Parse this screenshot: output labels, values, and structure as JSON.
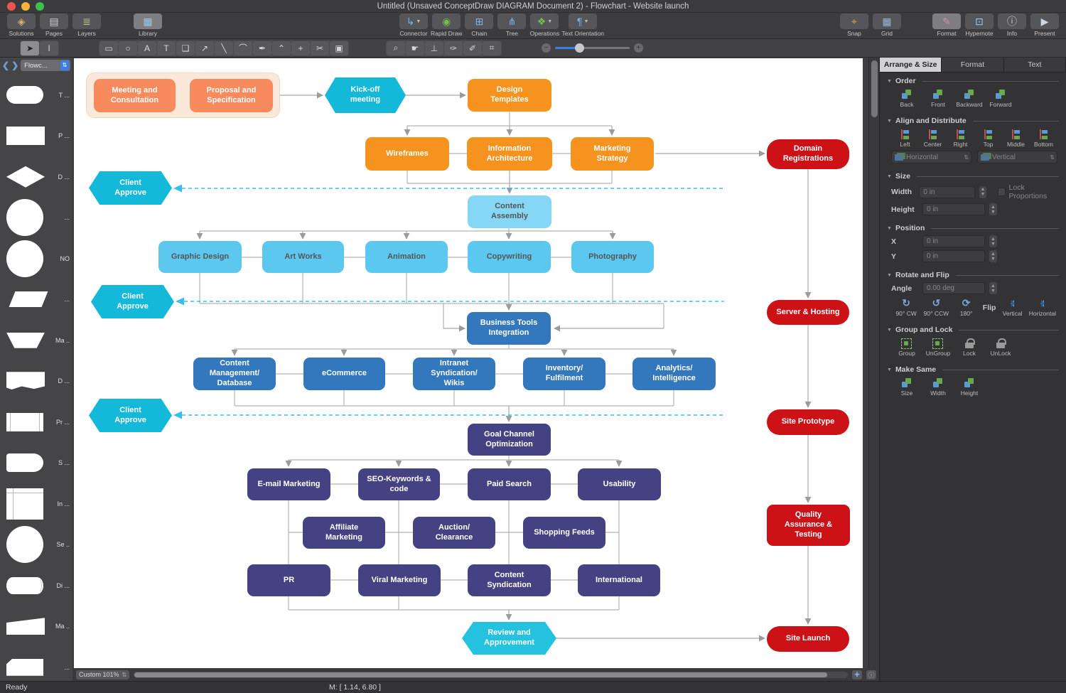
{
  "titlebar": {
    "title": "Untitled (Unsaved ConceptDraw DIAGRAM Document 2) - Flowchart - Website launch"
  },
  "toolbar": {
    "left": [
      {
        "label": "Solutions",
        "icon": "solutions-icon"
      },
      {
        "label": "Pages",
        "icon": "pages-icon"
      },
      {
        "label": "Layers",
        "icon": "layers-icon"
      }
    ],
    "library": {
      "label": "Library",
      "icon": "library-icon"
    },
    "center": [
      {
        "label": "Connector",
        "icon": "connector-icon",
        "caret": true
      },
      {
        "label": "Rapid Draw",
        "icon": "rapid-draw-icon",
        "caret": false
      },
      {
        "label": "Chain",
        "icon": "chain-icon",
        "caret": false
      },
      {
        "label": "Tree",
        "icon": "tree-icon",
        "caret": false
      },
      {
        "label": "Operations",
        "icon": "operations-icon",
        "caret": true
      },
      {
        "label": "Text Orientation",
        "icon": "text-orientation-icon",
        "caret": true
      }
    ],
    "snap_grid": [
      {
        "label": "Snap",
        "icon": "snap-icon"
      },
      {
        "label": "Grid",
        "icon": "grid-icon"
      }
    ],
    "right": [
      {
        "label": "Format",
        "icon": "format-icon",
        "active": true
      },
      {
        "label": "Hypernote",
        "icon": "hypernote-icon",
        "active": false
      },
      {
        "label": "Info",
        "icon": "info-icon",
        "active": false
      },
      {
        "label": "Present",
        "icon": "present-icon",
        "active": false
      }
    ]
  },
  "toolbar2": {
    "select_tools": [
      "select-tool",
      "text-select-tool"
    ],
    "draw_tools": [
      "rectangle-tool",
      "ellipse-tool",
      "text-tool",
      "text-block-tool",
      "callout-tool",
      "arrow-tool",
      "line-tool",
      "curve-tool",
      "pen-tool",
      "vertex-tool",
      "add-point-tool",
      "cut-tool",
      "shape-operations-tool"
    ],
    "view_tools": [
      "zoom-tool",
      "pan-tool",
      "stamp-tool",
      "eyedropper-tool",
      "brush-tool",
      "crop-tool"
    ]
  },
  "sidebar": {
    "dropdown": "Flowc...",
    "shapes": [
      {
        "kind": "terminator",
        "label": "T ..."
      },
      {
        "kind": "process",
        "label": "P ..."
      },
      {
        "kind": "decision",
        "label": "D ..."
      },
      {
        "kind": "circle",
        "label": "..."
      },
      {
        "kind": "circle",
        "label": "NO"
      },
      {
        "kind": "parallelogram",
        "label": "..."
      },
      {
        "kind": "trapezoid",
        "label": "Ma .."
      },
      {
        "kind": "document",
        "label": "D ..."
      },
      {
        "kind": "predefined",
        "label": "Pr ..."
      },
      {
        "kind": "stored",
        "label": "S ..."
      },
      {
        "kind": "internal",
        "label": "In ..."
      },
      {
        "kind": "circle",
        "label": "Se .."
      },
      {
        "kind": "cylinder",
        "label": "Di ..."
      },
      {
        "kind": "manualop",
        "label": "Ma .."
      },
      {
        "kind": "card",
        "label": "..."
      }
    ]
  },
  "flowchart": {
    "nodes": [
      {
        "id": "group1",
        "kind": "group",
        "label": ""
      },
      {
        "id": "meeting",
        "kind": "salmon",
        "label": "Meeting and\nConsultation"
      },
      {
        "id": "proposal",
        "kind": "salmon",
        "label": "Proposal and\nSpecification"
      },
      {
        "id": "kickoff",
        "kind": "hex",
        "label": "Kick-off\nmeeting"
      },
      {
        "id": "design",
        "kind": "orange",
        "label": "Design\nTemplates"
      },
      {
        "id": "wireframes",
        "kind": "orange",
        "label": "Wireframes"
      },
      {
        "id": "infoarch",
        "kind": "orange",
        "label": "Information\nArchitecture"
      },
      {
        "id": "marketing",
        "kind": "orange",
        "label": "Marketing\nStrategy"
      },
      {
        "id": "domain",
        "kind": "redstadium",
        "label": "Domain\nRegistrations"
      },
      {
        "id": "approve1",
        "kind": "hex",
        "label": "Client\nApprove"
      },
      {
        "id": "contentasm",
        "kind": "lighterblue",
        "label": "Content\nAssembly"
      },
      {
        "id": "graphic",
        "kind": "lightblue",
        "label": "Graphic Design"
      },
      {
        "id": "artworks",
        "kind": "lightblue",
        "label": "Art Works"
      },
      {
        "id": "animation",
        "kind": "lightblue",
        "label": "Animation"
      },
      {
        "id": "copywriting",
        "kind": "lightblue",
        "label": "Copywriting"
      },
      {
        "id": "photography",
        "kind": "lightblue",
        "label": "Photography"
      },
      {
        "id": "approve2",
        "kind": "hex",
        "label": "Client\nApprove"
      },
      {
        "id": "server",
        "kind": "redstadium",
        "label": "Server & Hosting"
      },
      {
        "id": "bti",
        "kind": "blue",
        "label": "Business Tools\nIntegration"
      },
      {
        "id": "cms",
        "kind": "blue",
        "label": "Content\nManagement/\nDatabase"
      },
      {
        "id": "ecommerce",
        "kind": "blue",
        "label": "eCommerce"
      },
      {
        "id": "intranet",
        "kind": "blue",
        "label": "Intranet\nSyndication/\nWikis"
      },
      {
        "id": "inventory",
        "kind": "blue",
        "label": "Inventory/\nFulfilment"
      },
      {
        "id": "analytics",
        "kind": "blue",
        "label": "Analytics/\nIntelligence"
      },
      {
        "id": "approve3",
        "kind": "hex",
        "label": "Client\nApprove"
      },
      {
        "id": "prototype",
        "kind": "redstadium",
        "label": "Site Prototype"
      },
      {
        "id": "gco",
        "kind": "purple",
        "label": "Goal Channel\nOptimization"
      },
      {
        "id": "email",
        "kind": "purple",
        "label": "E-mail Marketing"
      },
      {
        "id": "seo",
        "kind": "purple",
        "label": "SEO-Keywords &\ncode"
      },
      {
        "id": "paidsearch",
        "kind": "purple",
        "label": "Paid Search"
      },
      {
        "id": "usability",
        "kind": "purple",
        "label": "Usability"
      },
      {
        "id": "affiliate",
        "kind": "purple",
        "label": "Affiliate\nMarketing"
      },
      {
        "id": "auction",
        "kind": "purple",
        "label": "Auction/\nClearance"
      },
      {
        "id": "shopping",
        "kind": "purple",
        "label": "Shopping Feeds"
      },
      {
        "id": "qa",
        "kind": "redrect",
        "label": "Quality\nAssurance &\nTesting"
      },
      {
        "id": "pr",
        "kind": "purple",
        "label": "PR"
      },
      {
        "id": "viral",
        "kind": "purple",
        "label": "Viral Marketing"
      },
      {
        "id": "contentsynd",
        "kind": "purple",
        "label": "Content\nSyndication"
      },
      {
        "id": "international",
        "kind": "purple",
        "label": "International"
      },
      {
        "id": "review",
        "kind": "hex2",
        "label": "Review and\nApprovement"
      },
      {
        "id": "sitelaunch",
        "kind": "redstadium",
        "label": "Site Launch"
      }
    ],
    "colors": {
      "salmon": "#f78b5d",
      "orange": "#f6921e",
      "cyan": "#14b8d8",
      "light_blue": "#5cc8f0",
      "lighter_blue": "#86d7f6",
      "blue": "#3377bd",
      "purple": "#454284",
      "red": "#cd1217",
      "connector_gray": "#9b9b9b",
      "dashed_cyan": "#38bee8"
    }
  },
  "canvas": {
    "zoom_value": "Custom 101%"
  },
  "panel": {
    "tabs": [
      {
        "label": "Arrange & Size",
        "active": true
      },
      {
        "label": "Format",
        "active": false
      },
      {
        "label": "Text",
        "active": false
      }
    ],
    "order": {
      "title": "Order",
      "buttons": [
        "Back",
        "Front",
        "Backward",
        "Forward"
      ]
    },
    "align": {
      "title": "Align and Distribute",
      "buttons": [
        "Left",
        "Center",
        "Right",
        "Top",
        "Middle",
        "Bottom"
      ],
      "dropdowns": [
        "Horizontal",
        "Vertical"
      ]
    },
    "size": {
      "title": "Size",
      "width_label": "Width",
      "height_label": "Height",
      "width_value": "0 in",
      "height_value": "0 in",
      "lock_label": "Lock Proportions"
    },
    "position": {
      "title": "Position",
      "x_label": "X",
      "y_label": "Y",
      "x_value": "0 in",
      "y_value": "0 in"
    },
    "rotate": {
      "title": "Rotate and Flip",
      "angle_label": "Angle",
      "angle_value": "0.00 deg",
      "buttons": [
        "90° CW",
        "90° CCW",
        "180°"
      ],
      "flip_label": "Flip",
      "flip_buttons": [
        "Vertical",
        "Horizontal"
      ]
    },
    "group": {
      "title": "Group and Lock",
      "buttons": [
        "Group",
        "UnGroup",
        "Lock",
        "UnLock"
      ]
    },
    "same": {
      "title": "Make Same",
      "buttons": [
        "Size",
        "Width",
        "Height"
      ]
    }
  },
  "statusbar": {
    "ready": "Ready",
    "coords": "M: [ 1.14, 6.80 ]"
  }
}
